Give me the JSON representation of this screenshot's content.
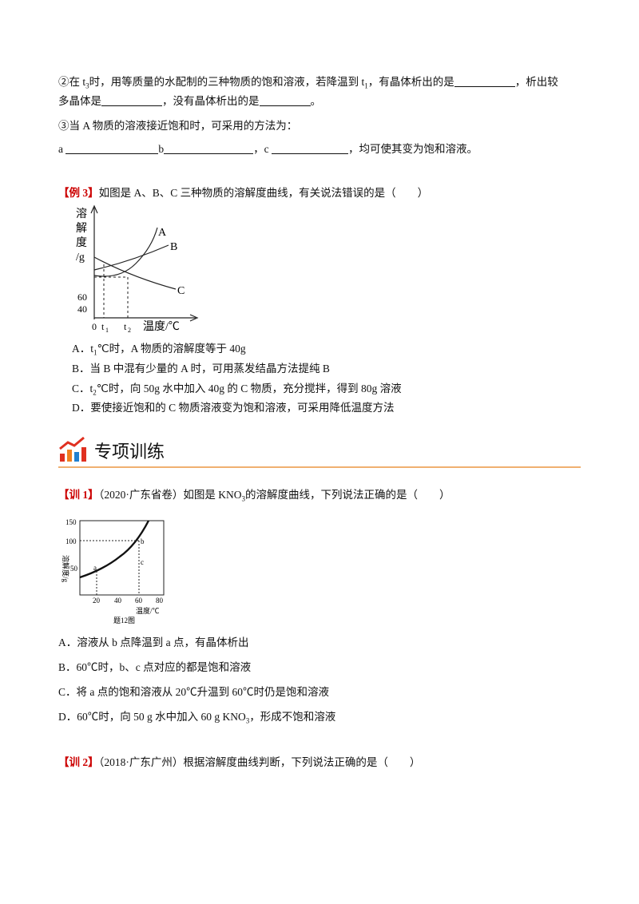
{
  "q2": {
    "parts": [
      "②在 t",
      "3",
      "时，用等质量的水配制的三种物质的饱和溶液，若降温到 t",
      "1",
      "，有晶体析出的是",
      "，析出较",
      "多晶体是",
      "，没有晶体析出的是",
      "。"
    ]
  },
  "q3": {
    "text": "③当 A 物质的溶液接近饱和时，可采用的方法为：",
    "blanks": [
      "a",
      "b",
      "，c",
      "，均可使其变为饱和溶液。"
    ]
  },
  "example3": {
    "tag": "【例 3】",
    "stem": "如图是 A、B、C 三种物质的溶解度曲线，有关说法错误的是（　　）",
    "figure": {
      "y_label": [
        "溶",
        "解",
        "度",
        "/g"
      ],
      "yticks": [
        "60",
        "40"
      ],
      "xticks": [
        "0",
        "t",
        "1",
        "t",
        "2"
      ],
      "x_label": "温度/℃",
      "curves": [
        "A",
        "B",
        "C"
      ]
    },
    "options": [
      [
        "A．t",
        "1",
        "℃时，A 物质的溶解度等于 40g"
      ],
      [
        "B．当 B 中混有少量的 A 时，可用蒸发结晶方法提纯 B"
      ],
      [
        "C．t",
        "2",
        "℃时，向 50g 水中加入 40g 的 C 物质，充分搅拌，得到 80g 溶液"
      ],
      [
        "D．要使接近饱和的 C 物质溶液变为饱和溶液，可采用降低温度方法"
      ]
    ]
  },
  "section": {
    "title": "专项训练"
  },
  "train1": {
    "tag": "【训 1】",
    "stem": [
      "（2020·广东省卷）如图是 KNO",
      "3",
      "的溶解度曲线，下列说法正确的是（　　）"
    ],
    "figure": {
      "y_label": "溶解度/g",
      "yticks": [
        "150",
        "100",
        "50"
      ],
      "xticks": [
        "20",
        "40",
        "60",
        "80"
      ],
      "x_label": "温度/℃",
      "caption": "题12图",
      "points": [
        "a",
        "b",
        "c"
      ]
    },
    "options": [
      [
        "A．溶液从 b 点降温到 a 点，有晶体析出"
      ],
      [
        "B．60℃时，b、c 点对应的都是饱和溶液"
      ],
      [
        "C．将 a 点的饱和溶液从 20℃升温到 60℃时仍是饱和溶液"
      ],
      [
        "D．60℃时，向 50 g 水中加入 60 g KNO",
        "3",
        "，形成不饱和溶液"
      ]
    ]
  },
  "train2": {
    "tag": "【训 2】",
    "stem": "（2018·广东广州）根据溶解度曲线判断，下列说法正确的是（　　）"
  }
}
